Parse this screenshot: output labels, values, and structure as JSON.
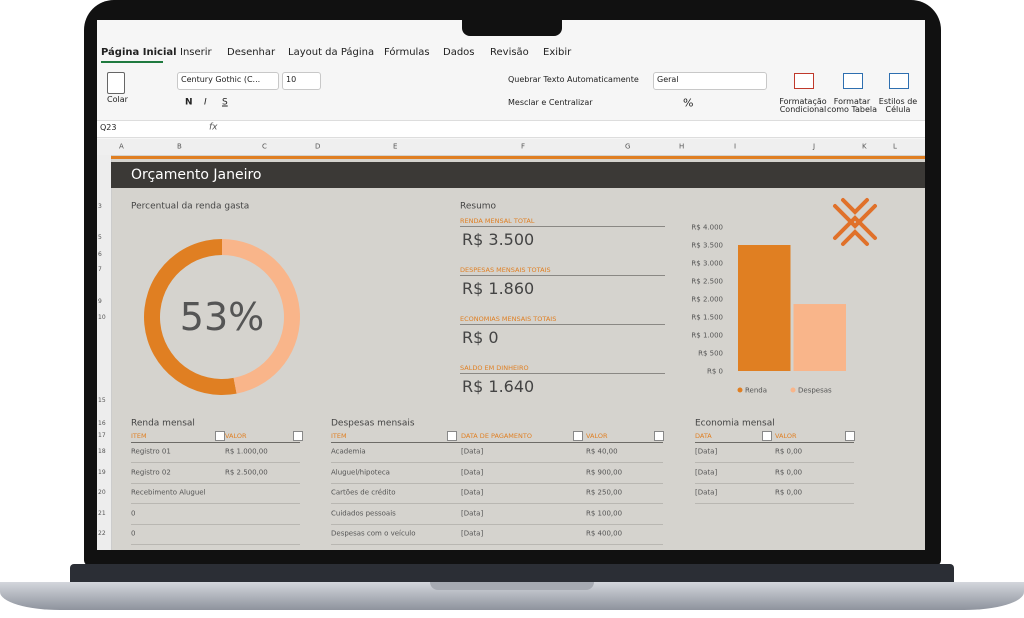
{
  "ribbon": {
    "tabs": [
      "Página Inicial",
      "Inserir",
      "Desenhar",
      "Layout da Página",
      "Fórmulas",
      "Dados",
      "Revisão",
      "Exibir"
    ],
    "clipboard": "Colar",
    "font": "Century Gothic (C...",
    "font_size": "10",
    "font_styles": [
      "N",
      "I",
      "S"
    ],
    "wrap_text": "Quebrar Texto Automaticamente",
    "merge": "Mesclar e Centralizar",
    "number_format": "Geral",
    "percent": "%",
    "styles": [
      "Formatação Condicional",
      "Formatar como Tabela",
      "Estilos de Célula"
    ]
  },
  "formula_bar": {
    "cell": "Q23",
    "fx": "fx"
  },
  "grid": {
    "columns": [
      "A",
      "B",
      "C",
      "D",
      "E",
      "F",
      "G",
      "H",
      "I",
      "J",
      "K",
      "L"
    ],
    "rows": [
      "3",
      "5",
      "6",
      "7",
      "9",
      "10",
      "15",
      "16",
      "17",
      "18",
      "19",
      "20",
      "21",
      "22"
    ]
  },
  "sheet": {
    "title": "Orçamento Janeiro",
    "donut_title": "Percentual da renda gasta",
    "summary": {
      "title": "Resumo",
      "items": [
        {
          "label": "RENDA MENSAL TOTAL",
          "value": "R$ 3.500"
        },
        {
          "label": "DESPESAS MENSAIS TOTAIS",
          "value": "R$ 1.860"
        },
        {
          "label": "ECONOMIAS MENSAIS TOTAIS",
          "value": "R$ 0"
        },
        {
          "label": "SALDO EM DINHEIRO",
          "value": "R$ 1.640"
        }
      ]
    },
    "tables": [
      {
        "title": "Renda mensal",
        "headers": [
          "ITEM",
          "VALOR"
        ],
        "rows": [
          [
            "Registro 01",
            "R$ 1.000,00"
          ],
          [
            "Registro 02",
            "R$ 2.500,00"
          ],
          [
            "Recebimento Aluguel"
          ],
          [
            "0"
          ],
          [
            "0"
          ]
        ]
      },
      {
        "title": "Despesas mensais",
        "headers": [
          "ITEM",
          "DATA DE PAGAMENTO",
          "VALOR"
        ],
        "rows": [
          [
            "Academia",
            "[Data]",
            "R$ 40,00"
          ],
          [
            "Aluguel/hipoteca",
            "[Data]",
            "R$ 900,00"
          ],
          [
            "Cartões de crédito",
            "[Data]",
            "R$ 250,00"
          ],
          [
            "Cuidados pessoais",
            "[Data]",
            "R$ 100,00"
          ],
          [
            "Despesas com o veículo",
            "[Data]",
            "R$ 400,00"
          ]
        ]
      },
      {
        "title": "Economia mensal",
        "headers": [
          "DATA",
          "VALOR"
        ],
        "rows": [
          [
            "[Data]",
            "R$ 0,00"
          ],
          [
            "[Data]",
            "R$ 0,00"
          ],
          [
            "[Data]",
            "R$ 0,00"
          ]
        ]
      }
    ]
  },
  "chart_data": [
    {
      "type": "donut",
      "values": [
        53,
        47
      ],
      "colors": [
        "#e07f22",
        "#f9b58a"
      ],
      "center_label": "53%"
    },
    {
      "type": "bar",
      "ylim": [
        0,
        4000
      ],
      "yticks": [
        {
          "value": 0,
          "label": "R$ 0"
        },
        {
          "value": 500,
          "label": "R$ 500"
        },
        {
          "value": 1000,
          "label": "R$ 1.000"
        },
        {
          "value": 1500,
          "label": "R$ 1.500"
        },
        {
          "value": 2000,
          "label": "R$ 2.000"
        },
        {
          "value": 2500,
          "label": "R$ 2.500"
        },
        {
          "value": 3000,
          "label": "R$ 3.000"
        },
        {
          "value": 3500,
          "label": "R$ 3.500"
        },
        {
          "value": 4000,
          "label": "R$ 4.000"
        }
      ],
      "grid": false,
      "legend": "bottom",
      "series": [
        {
          "name": "Renda",
          "color": "#e07f22",
          "values": [
            3500
          ]
        },
        {
          "name": "Despesas",
          "color": "#f9b58a",
          "values": [
            1860
          ]
        }
      ]
    }
  ]
}
